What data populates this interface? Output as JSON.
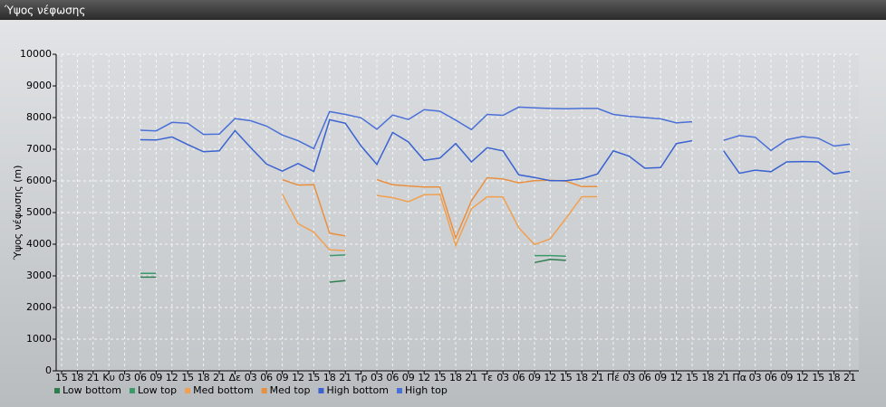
{
  "chart_data": {
    "type": "line",
    "title": "Ύψος νέφωσης",
    "y_label": "Ύψος νέφωσης (m)",
    "categories": [
      "15",
      "18",
      "21",
      "Κυ",
      "03",
      "06",
      "09",
      "12",
      "15",
      "18",
      "21",
      "Δε",
      "03",
      "06",
      "09",
      "12",
      "15",
      "18",
      "21",
      "Τρ",
      "03",
      "06",
      "09",
      "12",
      "15",
      "18",
      "21",
      "Τε",
      "03",
      "06",
      "09",
      "12",
      "15",
      "18",
      "21",
      "Πέ",
      "03",
      "06",
      "09",
      "12",
      "15",
      "18",
      "21",
      "Πα",
      "03",
      "06",
      "09",
      "12",
      "15",
      "18",
      "21"
    ],
    "ylim": [
      0,
      10000
    ],
    "yticks": [
      0,
      1000,
      2000,
      3000,
      4000,
      5000,
      6000,
      7000,
      8000,
      9000,
      10000
    ],
    "grid": true,
    "series": [
      {
        "name": "Low bottom",
        "color": "#2e7d4f",
        "values": [
          null,
          null,
          null,
          null,
          null,
          2960,
          2960,
          null,
          null,
          null,
          null,
          null,
          null,
          null,
          null,
          null,
          null,
          2800,
          2850,
          null,
          null,
          null,
          null,
          null,
          null,
          null,
          null,
          null,
          null,
          null,
          3420,
          3520,
          3490,
          null,
          null,
          null,
          null,
          null,
          null,
          null,
          null,
          null,
          null,
          null,
          null,
          null,
          null,
          null,
          null,
          null,
          null
        ]
      },
      {
        "name": "Low top",
        "color": "#3a9a6a",
        "values": [
          null,
          null,
          null,
          null,
          null,
          3080,
          3080,
          null,
          null,
          null,
          null,
          null,
          null,
          null,
          null,
          null,
          null,
          3640,
          3660,
          null,
          null,
          null,
          null,
          null,
          null,
          null,
          null,
          null,
          null,
          null,
          3640,
          3640,
          3620,
          null,
          null,
          null,
          null,
          null,
          null,
          null,
          null,
          null,
          null,
          null,
          null,
          null,
          null,
          null,
          null,
          null,
          null
        ]
      },
      {
        "name": "Med bottom",
        "color": "#f0a050",
        "values": [
          null,
          null,
          null,
          null,
          null,
          null,
          null,
          null,
          null,
          null,
          null,
          null,
          null,
          null,
          5580,
          4650,
          4380,
          3820,
          3800,
          null,
          5540,
          5470,
          5340,
          5560,
          5570,
          3960,
          5120,
          5500,
          5490,
          4520,
          3990,
          4170,
          4820,
          5500,
          5500,
          null,
          null,
          null,
          null,
          null,
          null,
          null,
          null,
          null,
          null,
          null,
          null,
          null,
          null,
          null,
          null
        ]
      },
      {
        "name": "Med top",
        "color": "#e89040",
        "values": [
          null,
          null,
          null,
          null,
          null,
          null,
          null,
          null,
          null,
          null,
          null,
          null,
          null,
          null,
          6040,
          5870,
          5880,
          4350,
          4260,
          null,
          6040,
          5880,
          5840,
          5810,
          5810,
          4200,
          5370,
          6100,
          6060,
          5940,
          6010,
          6020,
          5990,
          5820,
          5820,
          null,
          null,
          null,
          null,
          null,
          null,
          null,
          null,
          null,
          null,
          null,
          null,
          null,
          null,
          null,
          null
        ]
      },
      {
        "name": "High bottom",
        "color": "#3a62d0",
        "values": [
          null,
          null,
          null,
          null,
          null,
          7300,
          7290,
          7390,
          7150,
          6920,
          6950,
          7590,
          7050,
          6530,
          6310,
          6550,
          6300,
          7930,
          7820,
          7100,
          6520,
          7530,
          7230,
          6650,
          6720,
          7180,
          6600,
          7050,
          6950,
          6190,
          6110,
          6010,
          6010,
          6070,
          6220,
          6950,
          6780,
          6400,
          6420,
          7180,
          7270,
          null,
          6950,
          6240,
          6340,
          6290,
          6600,
          6610,
          6600,
          6220,
          6300
        ]
      },
      {
        "name": "High top",
        "color": "#4a70d8",
        "values": [
          null,
          null,
          null,
          null,
          null,
          7600,
          7580,
          7850,
          7820,
          7470,
          7480,
          7970,
          7900,
          7730,
          7450,
          7270,
          7020,
          8190,
          8100,
          7990,
          7630,
          8080,
          7940,
          8250,
          8200,
          7920,
          7620,
          8100,
          8070,
          8330,
          8310,
          8290,
          8280,
          8290,
          8290,
          8100,
          8040,
          8000,
          7960,
          7830,
          7870,
          null,
          7280,
          7430,
          7380,
          6960,
          7300,
          7400,
          7350,
          7100,
          7160
        ]
      }
    ]
  }
}
